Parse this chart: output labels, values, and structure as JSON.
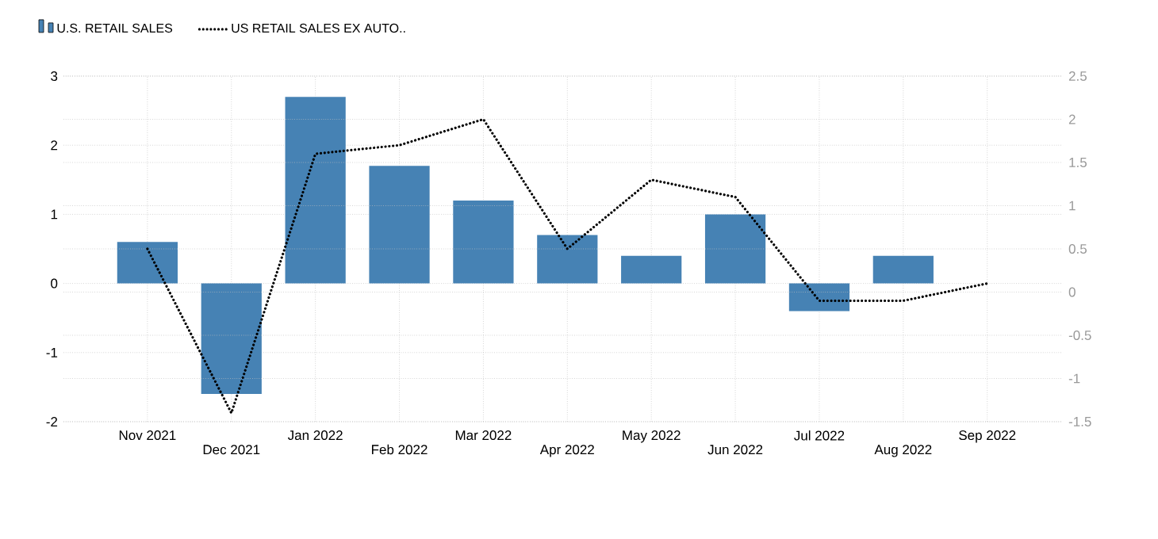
{
  "chart_data": {
    "type": "bar",
    "categories": [
      "Nov 2021",
      "Dec 2021",
      "Jan 2022",
      "Feb 2022",
      "Mar 2022",
      "Apr 2022",
      "May 2022",
      "Jun 2022",
      "Jul 2022",
      "Aug 2022",
      "Sep 2022"
    ],
    "series": [
      {
        "name": "U.S. RETAIL SALES",
        "color": "#4682b4",
        "values": [
          0.6,
          -1.6,
          2.7,
          1.7,
          1.2,
          0.7,
          0.4,
          1.0,
          -0.4,
          0.4,
          null
        ]
      },
      {
        "name": "US RETAIL SALES EX AUTO..",
        "type": "line",
        "axis": "y2",
        "color": "#000000",
        "line_style": "dotted",
        "marker": "none",
        "values": [
          0.5,
          -1.4,
          1.6,
          1.7,
          2.0,
          0.5,
          1.3,
          1.1,
          -0.1,
          -0.1,
          0.1
        ]
      }
    ],
    "ylim": [
      -2,
      3
    ],
    "yticks": [
      -2,
      -1,
      0,
      1,
      2,
      3
    ],
    "y2lim": [
      -1.5,
      2.5
    ],
    "y2ticks": [
      -1.5,
      -1,
      -0.5,
      0,
      0.5,
      1,
      1.5,
      2,
      2.5
    ],
    "grid": true,
    "legend": "top left"
  }
}
